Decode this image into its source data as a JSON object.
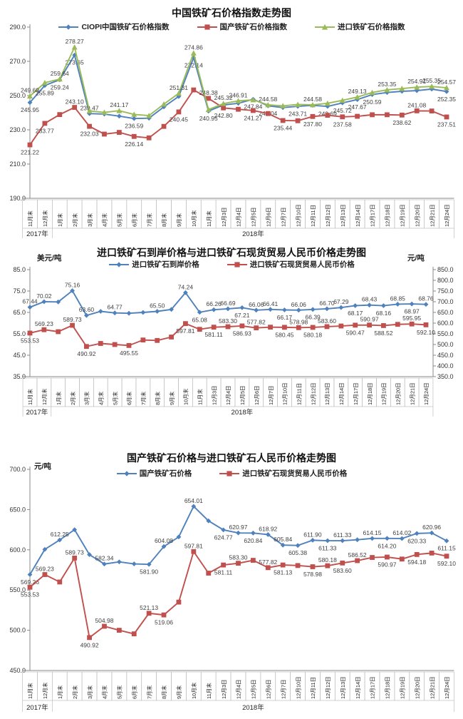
{
  "x_categories": [
    "11月末",
    "12月末",
    "1月末",
    "2月末",
    "3月末",
    "4月末",
    "5月末",
    "6月末",
    "7月末",
    "8月末",
    "9月末",
    "10月末",
    "11月末",
    "12月3日",
    "12月4日",
    "12月5日",
    "12月6日",
    "12月7日",
    "12月10日",
    "12月11日",
    "12月12日",
    "12月13日",
    "12月14日",
    "12月17日",
    "12月18日",
    "12月19日",
    "12月20日",
    "12月21日",
    "12月24日"
  ],
  "x_years": [
    {
      "label": "2017年",
      "span": 2
    },
    {
      "label": "2018年",
      "span": 27
    }
  ],
  "colors": {
    "blue": "#4F81BD",
    "red": "#C0504D",
    "green": "#9BBB59",
    "axis": "#898989",
    "cell_border": "#bfbfbf",
    "label_text": "#3f3f3f"
  },
  "chart_data": [
    {
      "type": "line",
      "title": "中国铁矿石价格指数走势图",
      "ylim": [
        190.0,
        290.0
      ],
      "ystep": 20,
      "grid": false,
      "legend_position": "top",
      "series": [
        {
          "name": "CIOPI中国铁矿石价格指数",
          "color": "blue",
          "marker": "diamond",
          "axis": "left",
          "values": [
            245.95,
            255.89,
            259.24,
            273.65,
            239.47,
            239.2,
            238.0,
            236.59,
            236.8,
            243.4,
            249.5,
            272.14,
            240.95,
            244.5,
            245.5,
            247.84,
            244.04,
            243.0,
            243.71,
            244.3,
            243.69,
            245.72,
            247.67,
            250.59,
            251.8,
            252.5,
            252.9,
            253.8,
            252.35
          ],
          "labels": [
            [
              0,
              "245.95",
              "b"
            ],
            [
              1,
              "255.89",
              "b"
            ],
            [
              2,
              "259.24",
              "b"
            ],
            [
              3,
              "273.65",
              "b"
            ],
            [
              4,
              "239.47",
              "a"
            ],
            [
              7,
              "236.59",
              "b"
            ],
            [
              11,
              "272.14",
              "b"
            ],
            [
              12,
              "240.95",
              "b"
            ],
            [
              15,
              "247.84",
              "b"
            ],
            [
              16,
              "244.04",
              "b"
            ],
            [
              18,
              "243.71",
              "b"
            ],
            [
              20,
              "243.69",
              "b"
            ],
            [
              21,
              "245.72",
              "b"
            ],
            [
              22,
              "247.67",
              "b"
            ],
            [
              23,
              "250.59",
              "b"
            ],
            [
              28,
              "252.35",
              "b"
            ]
          ]
        },
        {
          "name": "国产铁矿石价格指数",
          "color": "red",
          "marker": "square",
          "axis": "left",
          "values": [
            221.22,
            233.77,
            238.9,
            243.1,
            232.03,
            227.5,
            228.5,
            226.14,
            225.3,
            232.0,
            240.45,
            253.3,
            248.38,
            242.8,
            242.0,
            241.27,
            239.5,
            235.44,
            235.3,
            237.8,
            238.5,
            237.58,
            237.9,
            238.8,
            238.8,
            238.62,
            241.08,
            241.0,
            237.51
          ],
          "labels": [
            [
              0,
              "221.22",
              "b"
            ],
            [
              1,
              "233.77",
              "b"
            ],
            [
              3,
              "243.10",
              "a"
            ],
            [
              4,
              "232.03",
              "b"
            ],
            [
              7,
              "226.14",
              "b"
            ],
            [
              10,
              "240.45",
              "b"
            ],
            [
              12,
              "248.38",
              "a"
            ],
            [
              13,
              "242.80",
              "b"
            ],
            [
              15,
              "241.27",
              "b"
            ],
            [
              17,
              "235.44",
              "b"
            ],
            [
              19,
              "237.80",
              "b"
            ],
            [
              21,
              "237.58",
              "b"
            ],
            [
              25,
              "238.62",
              "b"
            ],
            [
              26,
              "241.08",
              "a"
            ],
            [
              28,
              "237.51",
              "b"
            ]
          ]
        },
        {
          "name": "进口铁矿石价格指数",
          "color": "green",
          "marker": "triangle",
          "axis": "left",
          "values": [
            249.69,
            257.5,
            259.64,
            278.27,
            241.0,
            240.2,
            241.17,
            239.0,
            238.3,
            245.0,
            251.31,
            274.86,
            241.8,
            245.32,
            246.91,
            247.5,
            244.58,
            244.0,
            244.8,
            244.58,
            245.5,
            247.2,
            249.13,
            251.8,
            253.35,
            254.1,
            254.91,
            255.35,
            254.57
          ],
          "labels": [
            [
              0,
              "249.69",
              "a"
            ],
            [
              2,
              "259.64",
              "a"
            ],
            [
              3,
              "278.27",
              "a"
            ],
            [
              6,
              "241.17",
              "a"
            ],
            [
              10,
              "251.31",
              "a"
            ],
            [
              11,
              "274.86",
              "a"
            ],
            [
              13,
              "245.32",
              "a"
            ],
            [
              14,
              "246.91",
              "a"
            ],
            [
              16,
              "244.58",
              "a"
            ],
            [
              19,
              "244.58",
              "a"
            ],
            [
              22,
              "249.13",
              "a"
            ],
            [
              24,
              "253.35",
              "a"
            ],
            [
              26,
              "254.91",
              "a"
            ],
            [
              27,
              "255.35",
              "a"
            ],
            [
              28,
              "254.57",
              "a"
            ]
          ]
        }
      ]
    },
    {
      "type": "line",
      "title": "进口铁矿石到岸价格与进口铁矿石现货贸易人民币价格走势图",
      "left_unit": "美元/吨",
      "right_unit": "元/吨",
      "ylim": [
        35.0,
        85.0
      ],
      "ystep": 10,
      "ylim_right": [
        350.0,
        850.0
      ],
      "ystep_right": 50,
      "grid": false,
      "legend_position": "top",
      "series": [
        {
          "name": "进口铁矿石到岸价格",
          "color": "blue",
          "marker": "diamond",
          "axis": "left",
          "values": [
            67.44,
            70.02,
            69.9,
            75.16,
            63.6,
            65.5,
            64.77,
            64.6,
            65.0,
            65.5,
            66.4,
            74.24,
            65.08,
            66.26,
            66.69,
            67.21,
            66.06,
            66.41,
            66.17,
            66.06,
            66.39,
            66.7,
            67.29,
            68.17,
            68.43,
            68.16,
            68.85,
            68.97,
            68.76
          ],
          "labels": [
            [
              0,
              "67.44",
              "a"
            ],
            [
              1,
              "70.02",
              "a"
            ],
            [
              3,
              "75.16",
              "a"
            ],
            [
              4,
              "63.60",
              "a"
            ],
            [
              6,
              "64.77",
              "a"
            ],
            [
              9,
              "65.50",
              "a"
            ],
            [
              11,
              "74.24",
              "a"
            ],
            [
              12,
              "65.08",
              "b"
            ],
            [
              13,
              "66.26",
              "a"
            ],
            [
              14,
              "66.69",
              "a"
            ],
            [
              15,
              "67.21",
              "b"
            ],
            [
              16,
              "66.06",
              "a"
            ],
            [
              17,
              "66.41",
              "a"
            ],
            [
              18,
              "66.17",
              "b"
            ],
            [
              19,
              "66.06",
              "a"
            ],
            [
              20,
              "66.39",
              "b"
            ],
            [
              21,
              "66.70",
              "a"
            ],
            [
              22,
              "67.29",
              "a"
            ],
            [
              23,
              "68.17",
              "b"
            ],
            [
              24,
              "68.43",
              "a"
            ],
            [
              25,
              "68.16",
              "b"
            ],
            [
              26,
              "68.85",
              "a"
            ],
            [
              27,
              "68.97",
              "b"
            ],
            [
              28,
              "68.76",
              "a"
            ]
          ]
        },
        {
          "name": "进口铁矿石现货贸易人民币价格",
          "color": "red",
          "marker": "square",
          "axis": "right",
          "values": [
            553.53,
            569.23,
            560.0,
            589.73,
            490.92,
            504.98,
            500.0,
            495.55,
            521.13,
            519.06,
            535.0,
            597.81,
            571.0,
            581.11,
            583.3,
            586.93,
            577.82,
            581.13,
            580.45,
            578.98,
            580.18,
            583.6,
            586.52,
            590.47,
            590.97,
            588.52,
            594.18,
            595.95,
            592.1
          ],
          "labels": [
            [
              0,
              "553.53",
              "b"
            ],
            [
              1,
              "569.23",
              "a"
            ],
            [
              3,
              "589.73",
              "a"
            ],
            [
              4,
              "490.92",
              "b"
            ],
            [
              7,
              "495.55",
              "b"
            ],
            [
              11,
              "597.81",
              "b"
            ],
            [
              13,
              "581.11",
              "b"
            ],
            [
              14,
              "583.30",
              "a"
            ],
            [
              15,
              "586.93",
              "b"
            ],
            [
              16,
              "577.82",
              "a"
            ],
            [
              18,
              "580.45",
              "b"
            ],
            [
              19,
              "578.98",
              "a"
            ],
            [
              20,
              "580.18",
              "b"
            ],
            [
              21,
              "583.60",
              "a"
            ],
            [
              23,
              "590.47",
              "b"
            ],
            [
              24,
              "590.97",
              "a"
            ],
            [
              25,
              "588.52",
              "b"
            ],
            [
              27,
              "595.95",
              "a"
            ],
            [
              28,
              "592.10",
              "b"
            ]
          ]
        }
      ]
    },
    {
      "type": "line",
      "title": "国产铁矿石价格与进口铁矿石人民币价格走势图",
      "left_unit": "元/吨",
      "ylim": [
        450.0,
        700.0
      ],
      "ystep": 50,
      "grid": false,
      "legend_position": "top",
      "series": [
        {
          "name": "国产铁矿石价格",
          "color": "blue",
          "marker": "diamond",
          "axis": "left",
          "values": [
            569.26,
            600.5,
            612.25,
            625.0,
            594.0,
            582.34,
            585.0,
            582.5,
            581.9,
            604.08,
            616.0,
            654.01,
            636.0,
            624.77,
            620.97,
            620.84,
            618.92,
            605.84,
            605.38,
            611.9,
            611.33,
            611.33,
            612.5,
            614.15,
            614.2,
            614.02,
            620.33,
            620.96,
            611.15
          ],
          "labels": [
            [
              0,
              "569.26",
              "b"
            ],
            [
              2,
              "612.25",
              "a"
            ],
            [
              5,
              "582.34",
              "a"
            ],
            [
              8,
              "581.90",
              "b"
            ],
            [
              9,
              "604.08",
              "a"
            ],
            [
              11,
              "654.01",
              "a"
            ],
            [
              13,
              "624.77",
              "b"
            ],
            [
              14,
              "620.97",
              "a"
            ],
            [
              15,
              "620.84",
              "b"
            ],
            [
              16,
              "618.92",
              "a"
            ],
            [
              17,
              "605.84",
              "a"
            ],
            [
              18,
              "605.38",
              "b"
            ],
            [
              19,
              "611.90",
              "a"
            ],
            [
              20,
              "611.33",
              "b"
            ],
            [
              21,
              "611.33",
              "a"
            ],
            [
              23,
              "614.15",
              "a"
            ],
            [
              24,
              "614.20",
              "b"
            ],
            [
              25,
              "614.02",
              "a"
            ],
            [
              26,
              "620.33",
              "b"
            ],
            [
              27,
              "620.96",
              "a"
            ],
            [
              28,
              "611.15",
              "b"
            ]
          ]
        },
        {
          "name": "进口铁矿石现货贸易人民币价格",
          "color": "red",
          "marker": "square",
          "axis": "left",
          "values": [
            553.53,
            569.23,
            560.0,
            589.73,
            490.92,
            504.98,
            500.0,
            495.55,
            521.13,
            519.06,
            535.0,
            597.81,
            571.0,
            581.11,
            583.3,
            586.93,
            577.82,
            581.13,
            580.45,
            578.98,
            580.18,
            583.6,
            586.52,
            590.47,
            590.97,
            588.52,
            594.18,
            595.95,
            592.1
          ],
          "labels": [
            [
              0,
              "553.53",
              "b"
            ],
            [
              1,
              "569.23",
              "a"
            ],
            [
              3,
              "589.73",
              "a"
            ],
            [
              4,
              "490.92",
              "b"
            ],
            [
              5,
              "504.98",
              "a"
            ],
            [
              8,
              "521.13",
              "a"
            ],
            [
              9,
              "519.06",
              "b"
            ],
            [
              11,
              "597.81",
              "a"
            ],
            [
              13,
              "581.11",
              "b"
            ],
            [
              14,
              "583.30",
              "a"
            ],
            [
              16,
              "577.82",
              "a"
            ],
            [
              17,
              "581.13",
              "b"
            ],
            [
              19,
              "578.98",
              "b"
            ],
            [
              20,
              "580.18",
              "a"
            ],
            [
              21,
              "583.60",
              "b"
            ],
            [
              22,
              "586.52",
              "a"
            ],
            [
              24,
              "590.97",
              "b"
            ],
            [
              26,
              "594.18",
              "b"
            ],
            [
              28,
              "592.10",
              "b"
            ]
          ]
        }
      ]
    }
  ]
}
